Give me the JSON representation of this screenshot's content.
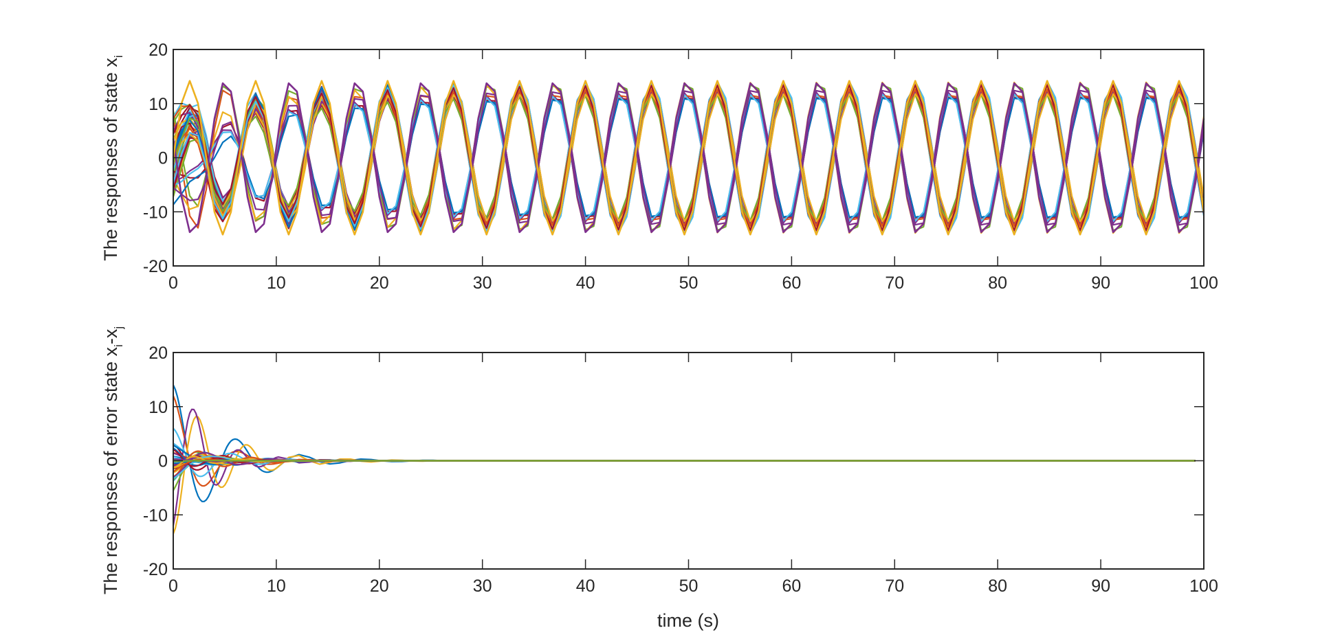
{
  "chart_data": [
    {
      "type": "line",
      "xlim": [
        0,
        100
      ],
      "ylim": [
        -20,
        20
      ],
      "xticks": [
        "0",
        "10",
        "20",
        "30",
        "40",
        "50",
        "60",
        "70",
        "80",
        "90",
        "100"
      ],
      "yticks": [
        "20",
        "10",
        "0",
        "-10",
        "-20"
      ],
      "xlabel": "",
      "ylabel": {
        "main": "The responses of state x",
        "sub": "i"
      },
      "grid": false,
      "legend": "none",
      "colors": [
        "#0072BD",
        "#D95319",
        "#EDB120",
        "#7E2F8E",
        "#77AC30",
        "#4DBEEE",
        "#A2142F"
      ],
      "description_of_series": "many oscillating trajectories, amplitude ~14, period ~6.4 s",
      "period": 6.4,
      "amplitude": 14.3
    },
    {
      "type": "line",
      "xlim": [
        0,
        100
      ],
      "ylim": [
        -20,
        20
      ],
      "xticks": [
        "0",
        "10",
        "20",
        "30",
        "40",
        "50",
        "60",
        "70",
        "80",
        "90",
        "100"
      ],
      "yticks": [
        "20",
        "10",
        "0",
        "-10",
        "-20"
      ],
      "xlabel": "time (s)",
      "ylabel": {
        "main": "The responses of error state x",
        "sub1": "i",
        "mid": "-x",
        "sub2": "j"
      },
      "grid": false,
      "legend": "none",
      "colors": [
        "#0072BD",
        "#D95319",
        "#EDB120",
        "#7E2F8E",
        "#77AC30",
        "#4DBEEE",
        "#A2142F"
      ],
      "initial_errors": [
        14,
        12,
        -13.5,
        -12,
        -5.5,
        6,
        3,
        -3,
        1.5,
        -1.5
      ],
      "decay_time": 20
    }
  ]
}
